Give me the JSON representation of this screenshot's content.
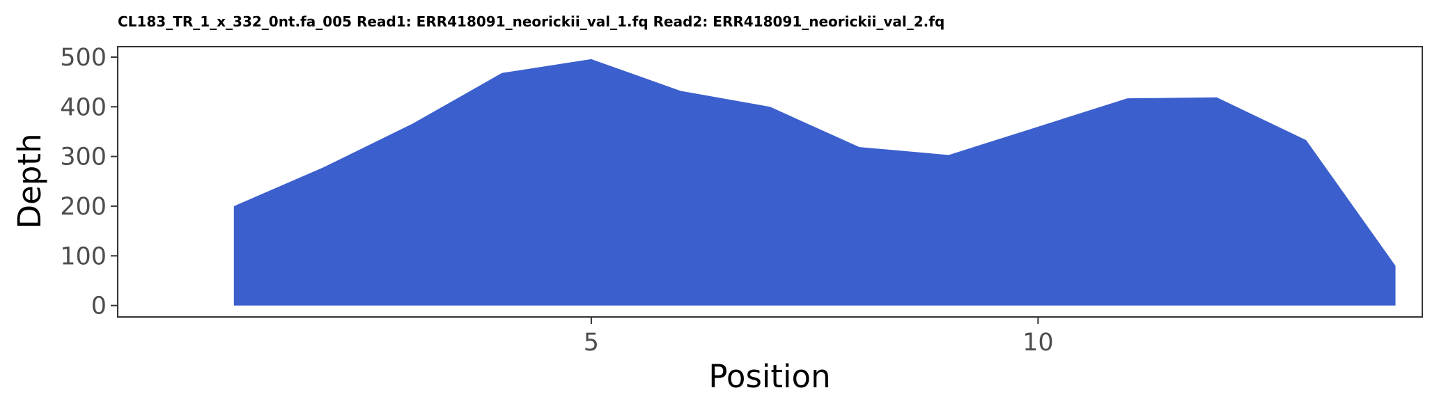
{
  "chart_data": {
    "type": "area",
    "title": "CL183_TR_1_x_332_0nt.fa_005 Read1: ERR418091_neorickii_val_1.fq Read2: ERR418091_neorickii_val_2.fq",
    "xlabel": "Position",
    "ylabel": "Depth",
    "x": [
      1,
      2,
      3,
      4,
      5,
      6,
      7,
      8,
      9,
      10,
      11,
      12,
      13,
      14
    ],
    "values": [
      200,
      278,
      366,
      468,
      496,
      432,
      400,
      319,
      303,
      360,
      417,
      419,
      333,
      80
    ],
    "xlim": [
      -0.3,
      14.3
    ],
    "ylim": [
      -23,
      521
    ],
    "xticks": [
      5,
      10
    ],
    "yticks": [
      0,
      100,
      200,
      300,
      400,
      500
    ],
    "grid": false,
    "legend": "none",
    "fill_color": "#3b5fcd",
    "panel_border_color": "#333333"
  }
}
